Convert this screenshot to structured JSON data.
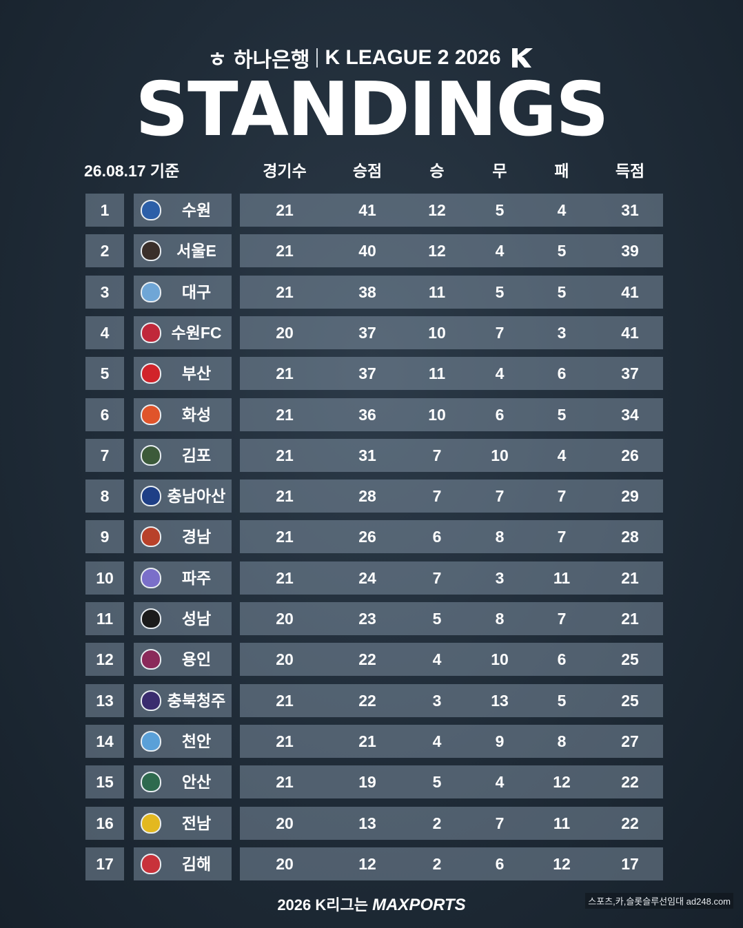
{
  "header": {
    "sponsor": "하나은행",
    "league": "K LEAGUE 2 2026",
    "title": "STANDINGS"
  },
  "table": {
    "date_label": "26.08.17 기준",
    "columns": [
      "경기수",
      "승점",
      "승",
      "무",
      "패",
      "득점"
    ],
    "rows": [
      {
        "rank": "1",
        "team": "수원",
        "gp": "21",
        "pts": "41",
        "w": "12",
        "d": "5",
        "l": "4",
        "gf": "31",
        "crest_color": "#2c5fa8",
        "crest_icon": "suwon-crest-icon"
      },
      {
        "rank": "2",
        "team": "서울E",
        "gp": "21",
        "pts": "40",
        "w": "12",
        "d": "4",
        "l": "5",
        "gf": "39",
        "crest_color": "#3a2f2a",
        "crest_icon": "seoul-e-crest-icon"
      },
      {
        "rank": "3",
        "team": "대구",
        "gp": "21",
        "pts": "38",
        "w": "11",
        "d": "5",
        "l": "5",
        "gf": "41",
        "crest_color": "#6fa6d6",
        "crest_icon": "daegu-crest-icon"
      },
      {
        "rank": "4",
        "team": "수원FC",
        "gp": "20",
        "pts": "37",
        "w": "10",
        "d": "7",
        "l": "3",
        "gf": "41",
        "crest_color": "#c0283a",
        "crest_icon": "suwon-fc-crest-icon"
      },
      {
        "rank": "5",
        "team": "부산",
        "gp": "21",
        "pts": "37",
        "w": "11",
        "d": "4",
        "l": "6",
        "gf": "37",
        "crest_color": "#d1232a",
        "crest_icon": "busan-crest-icon"
      },
      {
        "rank": "6",
        "team": "화성",
        "gp": "21",
        "pts": "36",
        "w": "10",
        "d": "6",
        "l": "5",
        "gf": "34",
        "crest_color": "#e0542a",
        "crest_icon": "hwaseong-crest-icon"
      },
      {
        "rank": "7",
        "team": "김포",
        "gp": "21",
        "pts": "31",
        "w": "7",
        "d": "10",
        "l": "4",
        "gf": "26",
        "crest_color": "#3c5a3a",
        "crest_icon": "gimpo-crest-icon"
      },
      {
        "rank": "8",
        "team": "충남아산",
        "gp": "21",
        "pts": "28",
        "w": "7",
        "d": "7",
        "l": "7",
        "gf": "29",
        "crest_color": "#1e3f86",
        "crest_icon": "asan-crest-icon"
      },
      {
        "rank": "9",
        "team": "경남",
        "gp": "21",
        "pts": "26",
        "w": "6",
        "d": "8",
        "l": "7",
        "gf": "28",
        "crest_color": "#b8412a",
        "crest_icon": "gyeongnam-crest-icon"
      },
      {
        "rank": "10",
        "team": "파주",
        "gp": "21",
        "pts": "24",
        "w": "7",
        "d": "3",
        "l": "11",
        "gf": "21",
        "crest_color": "#7a6fc9",
        "crest_icon": "paju-crest-icon"
      },
      {
        "rank": "11",
        "team": "성남",
        "gp": "20",
        "pts": "23",
        "w": "5",
        "d": "8",
        "l": "7",
        "gf": "21",
        "crest_color": "#1b1b1b",
        "crest_icon": "seongnam-crest-icon"
      },
      {
        "rank": "12",
        "team": "용인",
        "gp": "20",
        "pts": "22",
        "w": "4",
        "d": "10",
        "l": "6",
        "gf": "25",
        "crest_color": "#8a2a5a",
        "crest_icon": "yongin-crest-icon"
      },
      {
        "rank": "13",
        "team": "충북청주",
        "gp": "21",
        "pts": "22",
        "w": "3",
        "d": "13",
        "l": "5",
        "gf": "25",
        "crest_color": "#3a2c6e",
        "crest_icon": "cheongju-crest-icon"
      },
      {
        "rank": "14",
        "team": "천안",
        "gp": "21",
        "pts": "21",
        "w": "4",
        "d": "9",
        "l": "8",
        "gf": "27",
        "crest_color": "#5aa0d8",
        "crest_icon": "cheonan-crest-icon"
      },
      {
        "rank": "15",
        "team": "안산",
        "gp": "21",
        "pts": "19",
        "w": "5",
        "d": "4",
        "l": "12",
        "gf": "22",
        "crest_color": "#2e6a4e",
        "crest_icon": "ansan-crest-icon"
      },
      {
        "rank": "16",
        "team": "전남",
        "gp": "20",
        "pts": "13",
        "w": "2",
        "d": "7",
        "l": "11",
        "gf": "22",
        "crest_color": "#e3b820",
        "crest_icon": "jeonnam-crest-icon"
      },
      {
        "rank": "17",
        "team": "김해",
        "gp": "20",
        "pts": "12",
        "w": "2",
        "d": "6",
        "l": "12",
        "gf": "17",
        "crest_color": "#c8323a",
        "crest_icon": "gimhae-crest-icon"
      }
    ]
  },
  "footer": {
    "prefix": "2026 K리그는",
    "brand": "MAXPORTS"
  },
  "watermark": "스포츠,카,슬롯슬루선임대 ad248.com"
}
